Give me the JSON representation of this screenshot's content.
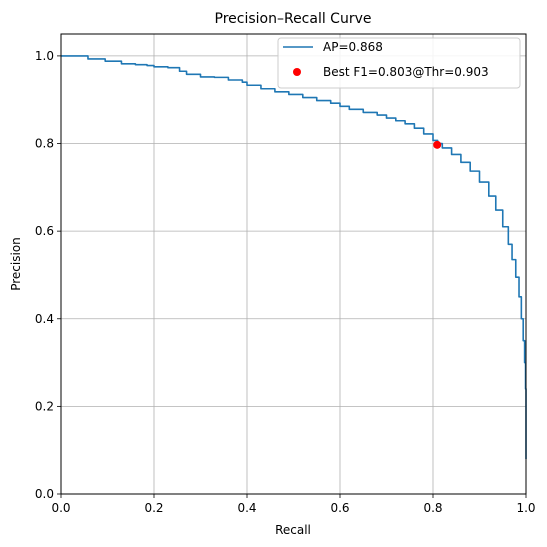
{
  "chart_data": {
    "type": "line",
    "title": "Precision–Recall Curve",
    "xlabel": "Recall",
    "ylabel": "Precision",
    "xlim": [
      0,
      1
    ],
    "ylim": [
      0,
      1.05
    ],
    "grid": true,
    "legend_position": "top-right",
    "x_ticks": [
      "0.0",
      "0.2",
      "0.4",
      "0.6",
      "0.8",
      "1.0"
    ],
    "y_ticks": [
      "0.0",
      "0.2",
      "0.4",
      "0.6",
      "0.8",
      "1.0"
    ],
    "series": [
      {
        "name": "AP=0.868",
        "color": "#1f77b4",
        "points": [
          [
            0.0,
            1.0
          ],
          [
            0.02,
            1.0
          ],
          [
            0.04,
            1.0
          ],
          [
            0.055,
            1.0
          ],
          [
            0.058,
            0.993
          ],
          [
            0.09,
            0.993
          ],
          [
            0.095,
            0.988
          ],
          [
            0.125,
            0.988
          ],
          [
            0.13,
            0.982
          ],
          [
            0.16,
            0.98
          ],
          [
            0.185,
            0.978
          ],
          [
            0.2,
            0.975
          ],
          [
            0.23,
            0.973
          ],
          [
            0.255,
            0.965
          ],
          [
            0.27,
            0.958
          ],
          [
            0.3,
            0.952
          ],
          [
            0.33,
            0.951
          ],
          [
            0.36,
            0.945
          ],
          [
            0.39,
            0.94
          ],
          [
            0.4,
            0.933
          ],
          [
            0.43,
            0.925
          ],
          [
            0.46,
            0.918
          ],
          [
            0.49,
            0.912
          ],
          [
            0.52,
            0.905
          ],
          [
            0.55,
            0.898
          ],
          [
            0.58,
            0.892
          ],
          [
            0.6,
            0.885
          ],
          [
            0.62,
            0.878
          ],
          [
            0.65,
            0.871
          ],
          [
            0.68,
            0.865
          ],
          [
            0.7,
            0.858
          ],
          [
            0.72,
            0.852
          ],
          [
            0.74,
            0.845
          ],
          [
            0.76,
            0.835
          ],
          [
            0.78,
            0.822
          ],
          [
            0.8,
            0.807
          ],
          [
            0.81,
            0.8
          ],
          [
            0.82,
            0.79
          ],
          [
            0.84,
            0.775
          ],
          [
            0.86,
            0.757
          ],
          [
            0.88,
            0.737
          ],
          [
            0.9,
            0.712
          ],
          [
            0.92,
            0.68
          ],
          [
            0.935,
            0.648
          ],
          [
            0.95,
            0.61
          ],
          [
            0.962,
            0.57
          ],
          [
            0.97,
            0.535
          ],
          [
            0.978,
            0.495
          ],
          [
            0.985,
            0.45
          ],
          [
            0.99,
            0.4
          ],
          [
            0.994,
            0.35
          ],
          [
            0.997,
            0.3
          ],
          [
            0.999,
            0.24
          ],
          [
            1.0,
            0.18
          ],
          [
            1.0,
            0.08
          ]
        ]
      }
    ],
    "markers": [
      {
        "name": "Best F1=0.803@Thr=0.903",
        "color": "#ff0000",
        "x": 0.809,
        "y": 0.797
      }
    ]
  }
}
